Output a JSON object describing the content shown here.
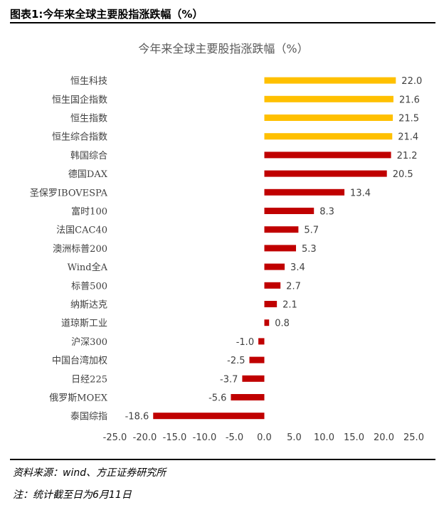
{
  "header": {
    "title": "图表1:今年来全球主要股指涨跌幅（%）"
  },
  "footer": {
    "source": "资料来源：wind、方正证券研究所",
    "note": "注：统计截至日为6月11日"
  },
  "colors": {
    "positive_top": "#FFC000",
    "positive": "#C00000",
    "negative": "#C00000",
    "axis": "#BFBFBF"
  },
  "chart_data": {
    "type": "bar",
    "orientation": "horizontal",
    "title": "今年来全球主要股指涨跌幅（%）",
    "xlabel": "",
    "ylabel": "",
    "xlim": [
      -25,
      25
    ],
    "xticks": [
      -25,
      -20,
      -15,
      -10,
      -5,
      0,
      5,
      10,
      15,
      20,
      25
    ],
    "xtick_labels": [
      "-25.0",
      "-20.0",
      "-15.0",
      "-10.0",
      "-5.0",
      "0.0",
      "5.0",
      "10.0",
      "15.0",
      "20.0",
      "25.0"
    ],
    "grid": false,
    "legend": "none",
    "categories": [
      "恒生科技",
      "恒生国企指数",
      "恒生指数",
      "恒生综合指数",
      "韩国综合",
      "德国DAX",
      "圣保罗IBOVESPA",
      "富时100",
      "法国CAC40",
      "澳洲标普200",
      "Wind全A",
      "标普500",
      "纳斯达克",
      "道琼斯工业",
      "沪深300",
      "中国台湾加权",
      "日经225",
      "俄罗斯MOEX",
      "泰国综指"
    ],
    "values": [
      22.0,
      21.6,
      21.5,
      21.4,
      21.2,
      20.5,
      13.4,
      8.3,
      5.7,
      5.3,
      3.4,
      2.7,
      2.1,
      0.8,
      -1.0,
      -2.5,
      -3.7,
      -5.6,
      -18.6
    ],
    "value_labels": [
      "22.0",
      "21.6",
      "21.5",
      "21.4",
      "21.2",
      "20.5",
      "13.4",
      "8.3",
      "5.7",
      "5.3",
      "3.4",
      "2.7",
      "2.1",
      "0.8",
      "-1.0",
      "-2.5",
      "-3.7",
      "-5.6",
      "-18.6"
    ],
    "bar_colors": [
      "#FFC000",
      "#FFC000",
      "#FFC000",
      "#FFC000",
      "#C00000",
      "#C00000",
      "#C00000",
      "#C00000",
      "#C00000",
      "#C00000",
      "#C00000",
      "#C00000",
      "#C00000",
      "#C00000",
      "#C00000",
      "#C00000",
      "#C00000",
      "#C00000",
      "#C00000"
    ]
  }
}
